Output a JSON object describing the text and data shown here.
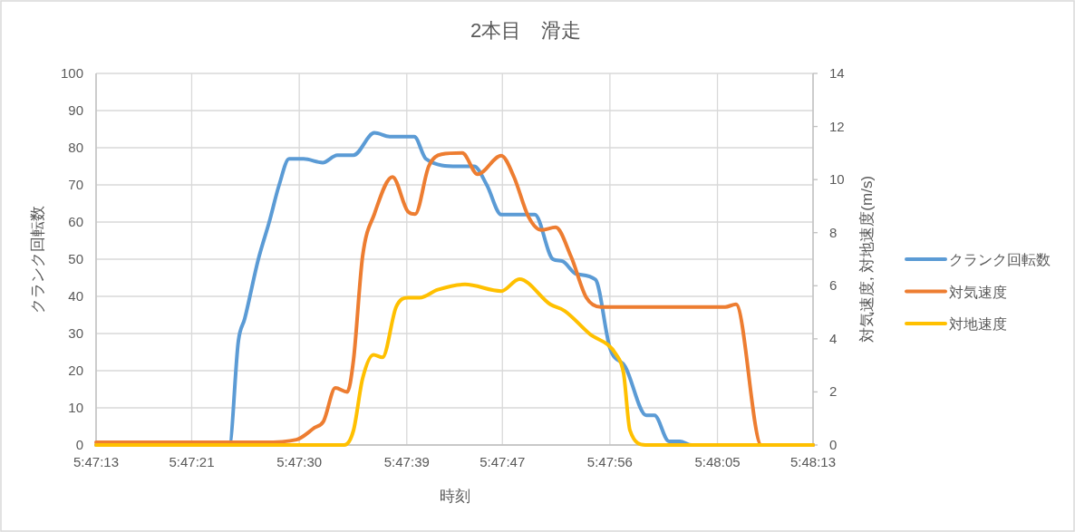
{
  "chart_data": {
    "type": "line",
    "title": "2本目　滑走",
    "xlabel": "時刻",
    "ylabel": "クランク回転数",
    "y2label": "対気速度, 対地速度(m/s)",
    "xlim": [
      5.786944,
      5.803611
    ],
    "xticks": [
      {
        "value": 5.786944,
        "label": "5:47:13"
      },
      {
        "value": 5.789167,
        "label": "5:47:21"
      },
      {
        "value": 5.791667,
        "label": "5:47:30"
      },
      {
        "value": 5.794167,
        "label": "5:47:39"
      },
      {
        "value": 5.796389,
        "label": "5:47:47"
      },
      {
        "value": 5.798889,
        "label": "5:47:56"
      },
      {
        "value": 5.801389,
        "label": "5:48:05"
      },
      {
        "value": 5.803611,
        "label": "5:48:13"
      }
    ],
    "ylim": [
      0,
      100
    ],
    "yticks": [
      0,
      10,
      20,
      30,
      40,
      50,
      60,
      70,
      80,
      90,
      100
    ],
    "y2lim": [
      0,
      14
    ],
    "y2ticks": [
      0,
      2,
      4,
      6,
      8,
      10,
      12,
      14
    ],
    "grid": true,
    "legend": "right",
    "marker": "none",
    "line_style": "solid",
    "series": [
      {
        "name": "クランク回転数",
        "color": "#5b9bd5",
        "x": [
          5.786944,
          5.790041,
          5.790252,
          5.7904,
          5.790716,
          5.790969,
          5.7912,
          5.791432,
          5.791769,
          5.792212,
          5.792549,
          5.792928,
          5.793413,
          5.793771,
          5.79434,
          5.794614,
          5.795351,
          5.795731,
          5.796026,
          5.796363,
          5.796847,
          5.797142,
          5.797564,
          5.797774,
          5.798112,
          5.798554,
          5.798891,
          5.799249,
          5.799734,
          5.799924,
          5.800261,
          5.800514,
          5.800788,
          5.803611
        ],
        "values": [
          0,
          0,
          28,
          34,
          50,
          60,
          70,
          77,
          77,
          76,
          78,
          78,
          84,
          83,
          83,
          77,
          75,
          75,
          70,
          62,
          62,
          62,
          50,
          49.5,
          46,
          44.5,
          26,
          21,
          8,
          8,
          1,
          1,
          0,
          0
        ]
      },
      {
        "name": "対気速度",
        "color": "#ed7d31",
        "axis": "y2",
        "x": [
          5.786944,
          5.790821,
          5.791601,
          5.792022,
          5.792233,
          5.792507,
          5.792781,
          5.792928,
          5.793139,
          5.793413,
          5.793834,
          5.794192,
          5.794361,
          5.794677,
          5.794972,
          5.795457,
          5.795815,
          5.796363,
          5.796658,
          5.796995,
          5.79729,
          5.797627,
          5.797985,
          5.798343,
          5.798681,
          5.801567,
          5.80182,
          5.80241,
          5.803611
        ],
        "values": [
          0.1,
          0.1,
          0.2,
          0.65,
          0.9,
          2.15,
          2.0,
          3.2,
          7.1,
          8.7,
          10.1,
          8.8,
          8.7,
          10.5,
          10.95,
          11.0,
          10.2,
          10.9,
          10.1,
          8.6,
          8.1,
          8.2,
          7.1,
          5.55,
          5.2,
          5.2,
          5.3,
          0,
          0
        ]
      },
      {
        "name": "対地速度",
        "color": "#ffc000",
        "axis": "y2",
        "x": [
          5.786944,
          5.792717,
          5.792928,
          5.793139,
          5.793392,
          5.793602,
          5.793919,
          5.794192,
          5.794466,
          5.794888,
          5.79552,
          5.796363,
          5.796784,
          5.797501,
          5.797838,
          5.798407,
          5.799039,
          5.799207,
          5.799355,
          5.799713,
          5.803611
        ],
        "values": [
          0,
          0,
          0.55,
          2.5,
          3.4,
          3.3,
          5.2,
          5.55,
          5.55,
          5.85,
          6.05,
          5.8,
          6.25,
          5.3,
          5.05,
          4.2,
          3.4,
          2.7,
          0.55,
          0,
          0
        ]
      }
    ]
  }
}
